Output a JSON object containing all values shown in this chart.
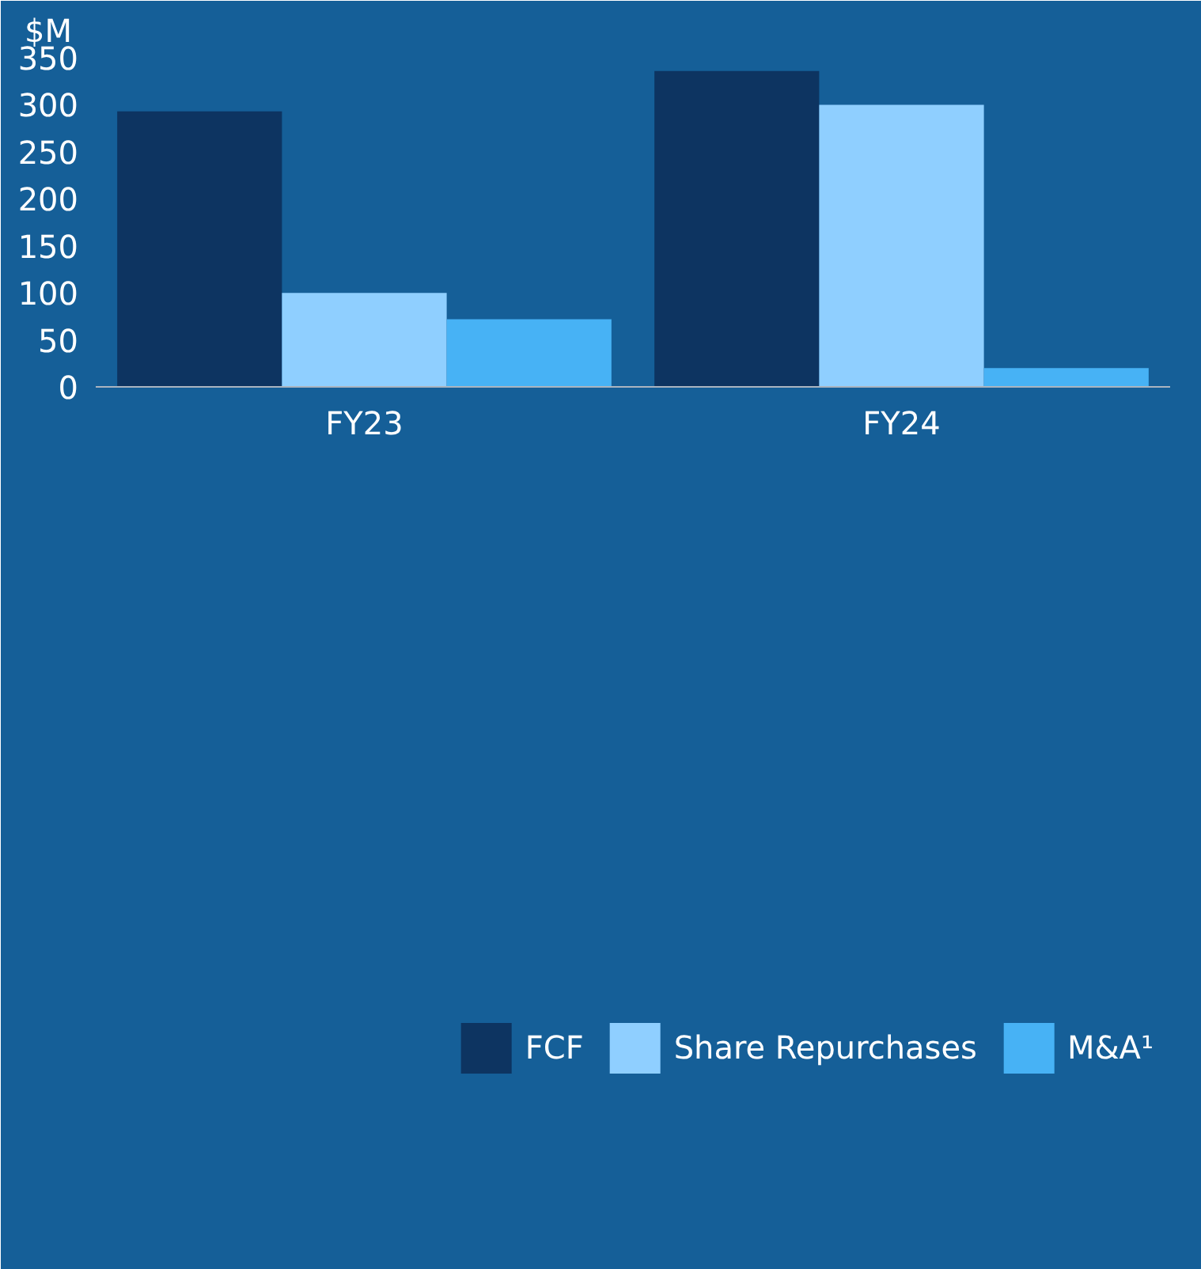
{
  "chart_data": {
    "type": "bar",
    "ylabel": "$M",
    "categories": [
      "FY23",
      "FY24"
    ],
    "series": [
      {
        "name": "FCF",
        "color": "#0d3461",
        "values": [
          293,
          336
        ]
      },
      {
        "name": "Share Repurchases",
        "color": "#8fcfff",
        "values": [
          100,
          300
        ]
      },
      {
        "name": "M&A¹",
        "color": "#47b2f5",
        "values": [
          72,
          20
        ]
      }
    ],
    "ylim": [
      0,
      350
    ],
    "yticks": [
      0,
      50,
      100,
      150,
      200,
      250,
      300,
      350
    ],
    "grid": false,
    "legend": "bottom"
  }
}
